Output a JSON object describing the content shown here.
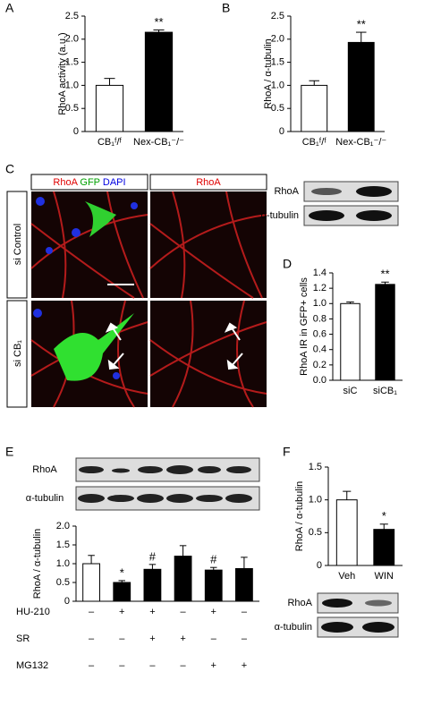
{
  "panels": [
    "A",
    "B",
    "C",
    "D",
    "E",
    "F"
  ],
  "chart_data": [
    {
      "type": "bar",
      "y_label": "RhoA activity (a.u.)",
      "categories": [
        "CB₁ᶠ/ᶠ",
        "Nex-CB₁⁻/⁻"
      ],
      "values": [
        1.0,
        2.15
      ],
      "errors": [
        0.15,
        0.05
      ],
      "annotations": [
        null,
        "**"
      ],
      "colors": [
        "#ffffff",
        "#000000"
      ],
      "ylim": [
        0,
        2.5
      ],
      "yticks": [
        0,
        0.5,
        {
          "value": 1.0,
          "label": "1.0"
        },
        1.5,
        {
          "value": 2.0,
          "label": "2.0"
        },
        2.5
      ]
    },
    {
      "type": "bar",
      "y_label": "RhoA / α-tubulin",
      "categories": [
        "CB₁ᶠ/ᶠ",
        "Nex-CB₁⁻/⁻"
      ],
      "values": [
        1.0,
        1.93
      ],
      "errors": [
        0.1,
        0.22
      ],
      "annotations": [
        null,
        "**"
      ],
      "colors": [
        "#ffffff",
        "#000000"
      ],
      "ylim": [
        0,
        2.5
      ],
      "yticks": [
        0,
        0.5,
        {
          "value": 1.0,
          "label": "1.0"
        },
        1.5,
        {
          "value": 2.0,
          "label": "2.0"
        },
        2.5
      ]
    },
    {
      "type": "bar",
      "y_label": "RhoA IR in GFP+ cells",
      "categories": [
        "siC",
        "siCB₁"
      ],
      "values": [
        1.0,
        1.25
      ],
      "errors": [
        0.02,
        0.03
      ],
      "annotations": [
        null,
        "**"
      ],
      "colors": [
        "#ffffff",
        "#000000"
      ],
      "ylim": [
        0,
        1.4
      ],
      "yticks": [
        {
          "value": 0,
          "label": "0.0"
        },
        0.2,
        0.4,
        0.6,
        0.8,
        {
          "value": 1.0,
          "label": "1.0"
        },
        1.2,
        1.4
      ]
    },
    {
      "type": "bar",
      "y_label": "RhoA / α-tubulin",
      "categories": [
        null,
        null,
        null,
        null,
        null,
        null
      ],
      "values": [
        1.0,
        0.5,
        0.85,
        1.2,
        0.83,
        0.87
      ],
      "errors": [
        0.22,
        0.05,
        0.13,
        0.28,
        0.07,
        0.3
      ],
      "annotations": [
        null,
        "*",
        "#",
        null,
        "#",
        null
      ],
      "colors": [
        "#ffffff",
        "#000000",
        "#000000",
        "#000000",
        "#000000",
        "#000000"
      ],
      "ylim": [
        0,
        2.0
      ],
      "yticks": [
        0,
        0.5,
        {
          "value": 1.0,
          "label": "1.0"
        },
        1.5,
        {
          "value": 2.0,
          "label": "2.0"
        }
      ],
      "treatments": [
        {
          "name": "HU-210",
          "marks": [
            "–",
            "+",
            "+",
            "–",
            "+",
            "–"
          ]
        },
        {
          "name": "SR",
          "marks": [
            "–",
            "–",
            "+",
            "+",
            "–",
            "–"
          ]
        },
        {
          "name": "MG132",
          "marks": [
            "–",
            "–",
            "–",
            "–",
            "+",
            "+"
          ]
        }
      ]
    },
    {
      "type": "bar",
      "y_label": "RhoA / α-tubulin",
      "categories": [
        "Veh",
        "WIN"
      ],
      "values": [
        1.0,
        0.55
      ],
      "errors": [
        0.13,
        0.08
      ],
      "annotations": [
        null,
        "*"
      ],
      "colors": [
        "#ffffff",
        "#000000"
      ],
      "ylim": [
        0,
        1.5
      ],
      "yticks": [
        0,
        0.5,
        {
          "value": 1.0,
          "label": "1.0"
        },
        1.5
      ]
    }
  ],
  "blots": {
    "b": [
      "RhoA",
      "α-tubulin"
    ],
    "e": [
      "RhoA",
      "α-tubulin"
    ],
    "f": [
      "RhoA",
      "α-tubulin"
    ]
  },
  "microscopy": {
    "headers": [
      [
        "RhoA",
        "GFP",
        "DAPI"
      ],
      [
        "RhoA"
      ]
    ],
    "rows": [
      "si Control",
      "si CB₁"
    ]
  }
}
